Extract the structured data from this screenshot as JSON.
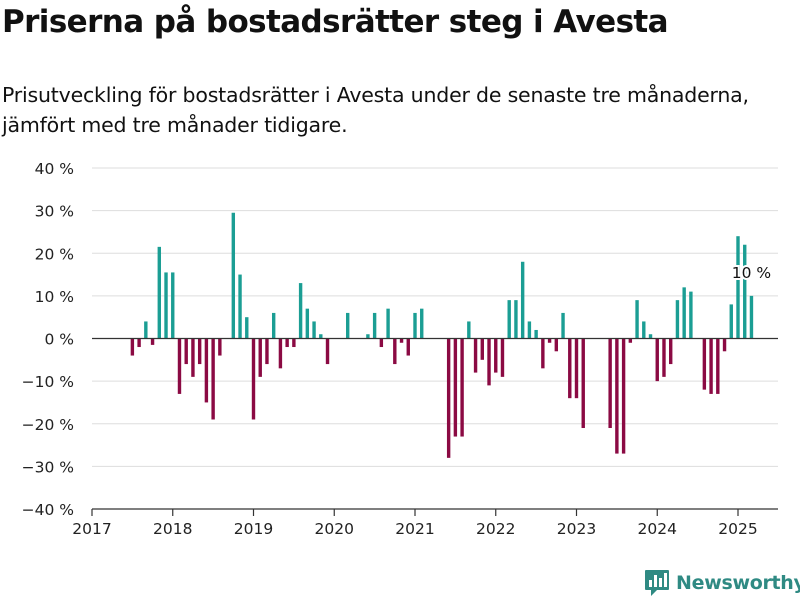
{
  "title": "Priserna på bostadsrätter steg i Avesta",
  "subtitle": "Prisutveckling för bostadsrätter i Avesta under de senaste tre månaderna, jämfört med tre månader tidigare.",
  "brand": {
    "name": "Newsworthy",
    "icon": "newsworthy-logo-icon",
    "color": "#2f8a83"
  },
  "colors": {
    "positive": "#1b9e94",
    "negative": "#8b0a43",
    "grid": "#dddddd",
    "axis": "#333333"
  },
  "chart_data": {
    "type": "bar",
    "title": "Priserna på bostadsrätter steg i Avesta",
    "ylim": [
      -40,
      40
    ],
    "y_ticks": [
      -40,
      -30,
      -20,
      -10,
      0,
      10,
      20,
      30,
      40
    ],
    "y_tick_labels": [
      "−40 %",
      "−30 %",
      "−20 %",
      "−10 %",
      "0 %",
      "10 %",
      "20 %",
      "30 %",
      "40 %"
    ],
    "x_tick_labels": [
      "2017",
      "2018",
      "2019",
      "2020",
      "2021",
      "2022",
      "2023",
      "2024",
      "2025"
    ],
    "x_range": [
      "2017-01",
      "2025-06"
    ],
    "grid": true,
    "legend": "none",
    "annotation": {
      "text": "10 %",
      "date": "2025-03"
    },
    "series": [
      {
        "points": [
          [
            "2017-07",
            -4
          ],
          [
            "2017-08",
            -2
          ],
          [
            "2017-09",
            4
          ],
          [
            "2017-10",
            -1.5
          ],
          [
            "2017-11",
            21.5
          ],
          [
            "2017-12",
            15.5
          ],
          [
            "2018-01",
            15.5
          ],
          [
            "2018-02",
            -13
          ],
          [
            "2018-03",
            -6
          ],
          [
            "2018-04",
            -9
          ],
          [
            "2018-05",
            -6
          ],
          [
            "2018-06",
            -15
          ],
          [
            "2018-07",
            -19
          ],
          [
            "2018-08",
            -4
          ],
          [
            "2018-10",
            29.5
          ],
          [
            "2018-11",
            15
          ],
          [
            "2018-12",
            5
          ],
          [
            "2019-01",
            -19
          ],
          [
            "2019-02",
            -9
          ],
          [
            "2019-03",
            -6
          ],
          [
            "2019-04",
            6
          ],
          [
            "2019-05",
            -7
          ],
          [
            "2019-06",
            -2
          ],
          [
            "2019-07",
            -2
          ],
          [
            "2019-08",
            13
          ],
          [
            "2019-09",
            7
          ],
          [
            "2019-10",
            4
          ],
          [
            "2019-11",
            1
          ],
          [
            "2019-12",
            -6
          ],
          [
            "2020-03",
            6
          ],
          [
            "2020-06",
            1
          ],
          [
            "2020-07",
            6
          ],
          [
            "2020-08",
            -2
          ],
          [
            "2020-09",
            7
          ],
          [
            "2020-10",
            -6
          ],
          [
            "2020-11",
            -1
          ],
          [
            "2020-12",
            -4
          ],
          [
            "2021-01",
            6
          ],
          [
            "2021-02",
            7
          ],
          [
            "2021-06",
            -28
          ],
          [
            "2021-07",
            -23
          ],
          [
            "2021-08",
            -23
          ],
          [
            "2021-09",
            4
          ],
          [
            "2021-10",
            -8
          ],
          [
            "2021-11",
            -5
          ],
          [
            "2021-12",
            -11
          ],
          [
            "2022-01",
            -8
          ],
          [
            "2022-02",
            -9
          ],
          [
            "2022-03",
            9
          ],
          [
            "2022-04",
            9
          ],
          [
            "2022-05",
            18
          ],
          [
            "2022-06",
            4
          ],
          [
            "2022-07",
            2
          ],
          [
            "2022-08",
            -7
          ],
          [
            "2022-09",
            -1
          ],
          [
            "2022-10",
            -3
          ],
          [
            "2022-11",
            6
          ],
          [
            "2022-12",
            -14
          ],
          [
            "2023-01",
            -14
          ],
          [
            "2023-02",
            -21
          ],
          [
            "2023-06",
            -21
          ],
          [
            "2023-07",
            -27
          ],
          [
            "2023-08",
            -27
          ],
          [
            "2023-09",
            -1
          ],
          [
            "2023-10",
            9
          ],
          [
            "2023-11",
            4
          ],
          [
            "2023-12",
            1
          ],
          [
            "2024-01",
            -10
          ],
          [
            "2024-02",
            -9
          ],
          [
            "2024-03",
            -6
          ],
          [
            "2024-04",
            9
          ],
          [
            "2024-05",
            12
          ],
          [
            "2024-06",
            11
          ],
          [
            "2024-08",
            -12
          ],
          [
            "2024-09",
            -13
          ],
          [
            "2024-10",
            -13
          ],
          [
            "2024-11",
            -3
          ],
          [
            "2024-12",
            8
          ],
          [
            "2025-01",
            24
          ],
          [
            "2025-02",
            22
          ],
          [
            "2025-03",
            10
          ]
        ]
      }
    ]
  }
}
